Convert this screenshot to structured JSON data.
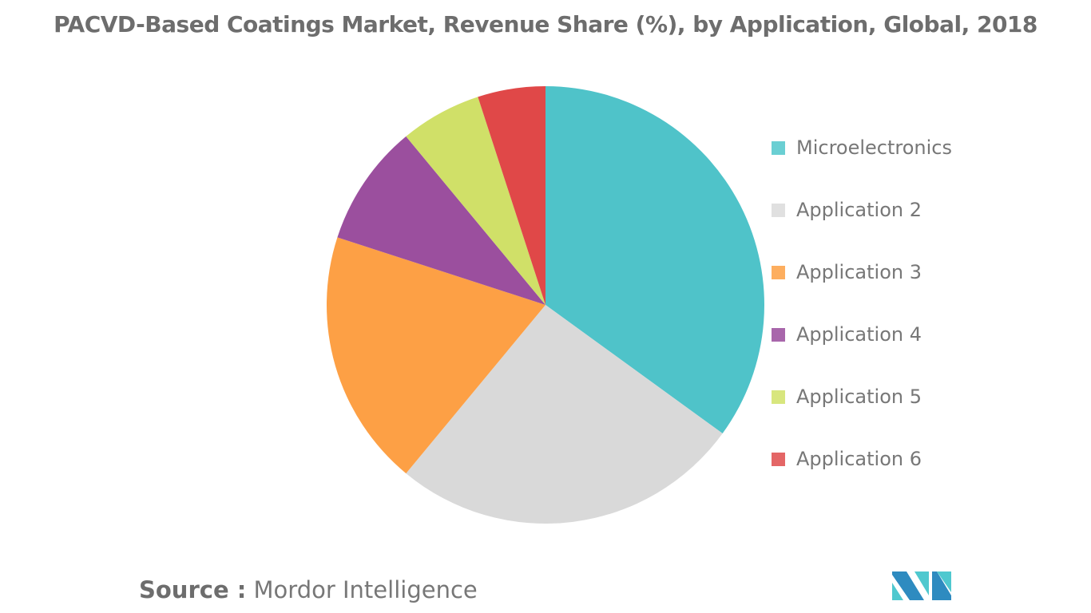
{
  "chart_data": {
    "type": "pie",
    "title": "PACVD-Based Coatings Market, Revenue Share (%), by Application, Global, 2018",
    "categories": [
      "Microelectronics",
      "Application 2",
      "Application 3",
      "Application 4",
      "Application 5",
      "Application 6"
    ],
    "values": [
      35,
      26,
      19,
      9,
      6,
      5
    ],
    "colors": [
      "#4FC3C9",
      "#D9D9D9",
      "#FDA045",
      "#9B4F9E",
      "#D0E068",
      "#E04848"
    ],
    "legend_colors": [
      "#6ACFD3",
      "#E0E0E0",
      "#FDAE5F",
      "#A866AB",
      "#D8E67E",
      "#E46666"
    ],
    "legend_position": "right",
    "start_angle": "12 o'clock, clockwise"
  },
  "source": {
    "label": "Source :",
    "text": "Mordor Intelligence"
  },
  "logo": {
    "text": "MI",
    "colors": [
      "#2E8BC0",
      "#4FC8CF"
    ]
  }
}
